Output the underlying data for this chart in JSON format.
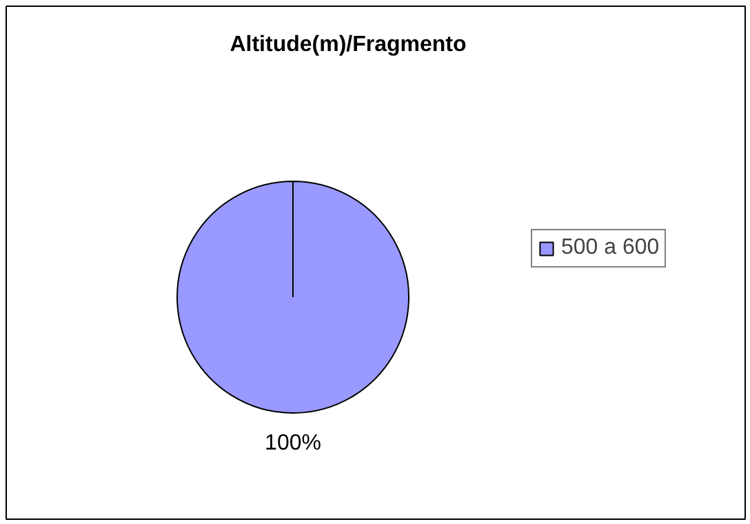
{
  "chart_data": {
    "type": "pie",
    "title": "Altitude(m)/Fragmento",
    "categories": [
      "500 a 600"
    ],
    "values": [
      100
    ],
    "colors": [
      "#9999ff"
    ],
    "value_labels": [
      "100%"
    ],
    "legend": "right"
  }
}
